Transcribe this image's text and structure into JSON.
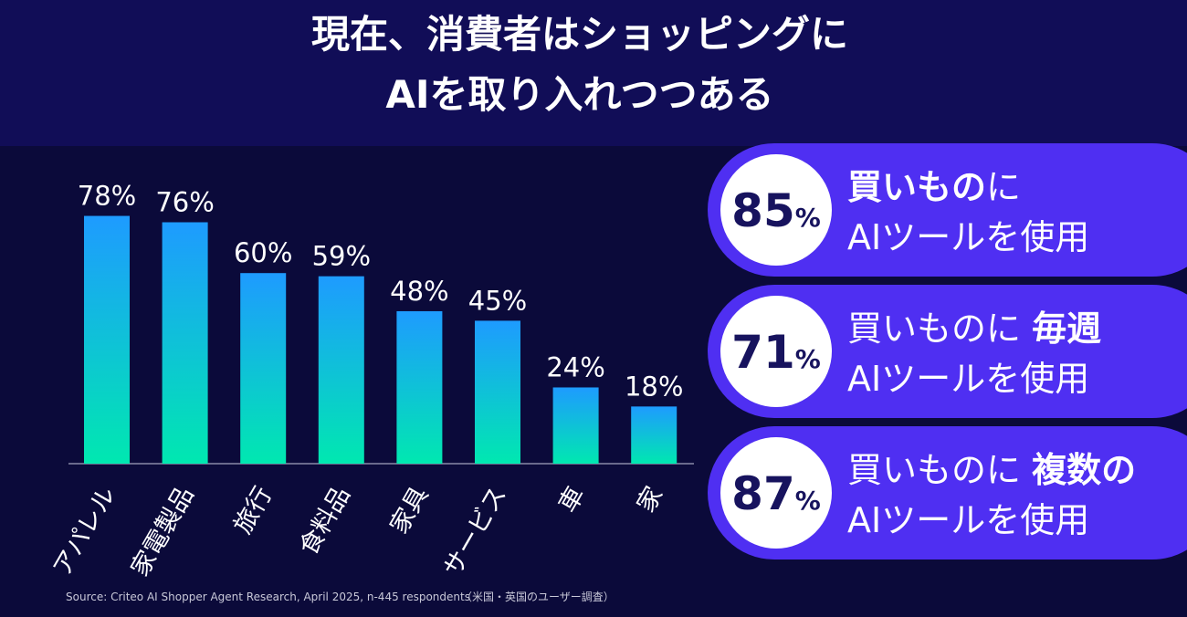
{
  "chart_data": {
    "type": "bar",
    "title": [
      "現在、消費者はショッピングに",
      "AIを取り入れつつある"
    ],
    "categories": [
      "アパレル",
      "家電製品",
      "旅行",
      "食料品",
      "家具",
      "サービス",
      "車",
      "家"
    ],
    "values": [
      78,
      76,
      60,
      59,
      48,
      45,
      24,
      18
    ],
    "value_labels": [
      "78%",
      "76%",
      "60%",
      "59%",
      "48%",
      "45%",
      "24%",
      "18%"
    ],
    "color": [
      "#1e9bff",
      "#00e8b0"
    ],
    "source": "Source: Criteo AI Shopper Agent Research, April 2025, n-445 respondents",
    "note": "（米国・英国のユーザー調査）"
  },
  "stats": [
    {
      "number": "85",
      "unit": "%",
      "line1": [
        {
          "text": "買いもの",
          "bold": true
        },
        {
          "text": "に",
          "bold": false
        }
      ],
      "line2": "AIツールを使用"
    },
    {
      "number": "71",
      "unit": "%",
      "line1": [
        {
          "text": "買いものに ",
          "bold": false
        },
        {
          "text": "毎週",
          "bold": true
        }
      ],
      "line2": "AIツールを使用"
    },
    {
      "number": "87",
      "unit": "%",
      "line1": [
        {
          "text": "買いものに ",
          "bold": false
        },
        {
          "text": "複数の",
          "bold": true
        }
      ],
      "line2": "AIツールを使用"
    }
  ]
}
